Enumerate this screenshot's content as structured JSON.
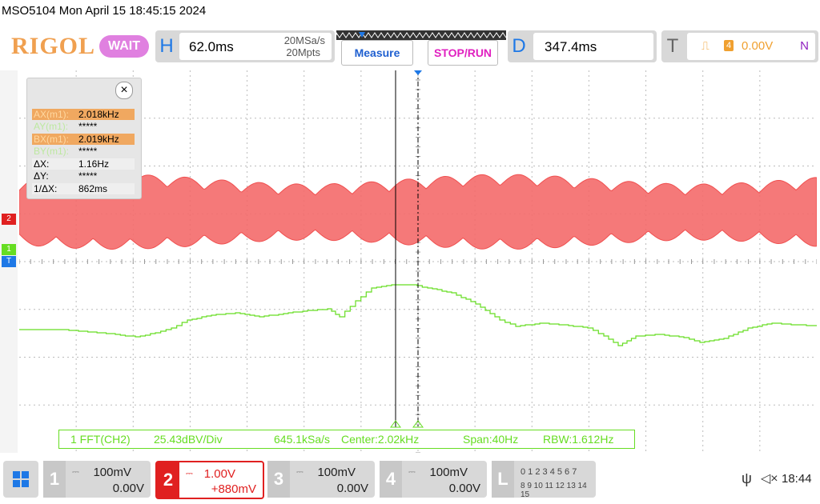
{
  "header": {
    "title": "MSO5104  Mon April 15 18:45:15 2024"
  },
  "toolbar": {
    "logo": "RIGOL",
    "status": "WAIT",
    "horizontal": {
      "letter": "H",
      "timebase": "62.0ms",
      "sample_rate": "20MSa/s",
      "memory_depth": "20Mpts"
    },
    "measure_label": "Measure",
    "stoprun_label": "STOP/RUN",
    "delay": {
      "letter": "D",
      "value": "347.4ms"
    },
    "trigger": {
      "letter": "T",
      "source_badge": "4",
      "level": "0.00V",
      "mode": "N"
    }
  },
  "cursor_panel": {
    "close": "×",
    "rows": [
      {
        "key": "AX(m1):",
        "value": "2.018kHz"
      },
      {
        "key": "AY(m1):",
        "value": "*****"
      },
      {
        "key": "BX(m1):",
        "value": "2.019kHz"
      },
      {
        "key": "BY(m1):",
        "value": "*****"
      },
      {
        "key": "ΔX:",
        "value": "1.16Hz"
      },
      {
        "key": "ΔY:",
        "value": "*****"
      },
      {
        "key": "1/ΔX:",
        "value": "862ms"
      }
    ]
  },
  "markers": {
    "ch2": "2",
    "ch1": "1",
    "trigger": "T"
  },
  "fft_info": {
    "channel": "1 FFT(CH2)",
    "scale": "25.43dBV/Div",
    "sample_rate": "645.1kSa/s",
    "center": "Center:2.02kHz",
    "span": "Span:40Hz",
    "rbw": "RBW:1.612Hz"
  },
  "channels": [
    {
      "num": "1",
      "scale": "100mV",
      "offset": "0.00V",
      "color": "#c0c0c0"
    },
    {
      "num": "2",
      "scale": "1.00V",
      "offset": "+880mV",
      "color": "#e02020"
    },
    {
      "num": "3",
      "scale": "100mV",
      "offset": "0.00V",
      "color": "#c0c0c0"
    },
    {
      "num": "4",
      "scale": "100mV",
      "offset": "0.00V",
      "color": "#c0c0c0"
    }
  ],
  "logic": {
    "letter": "L",
    "row1": "0 1 2 3  4 5 6 7",
    "row2": "8 9 10 11 12 13 14 15"
  },
  "status_bar": {
    "time": "18:44"
  },
  "colors": {
    "ch1": "#66dd22",
    "ch2": "#ee4444",
    "accent": "#1e78e6",
    "cursor_highlight": "#f0a860"
  }
}
